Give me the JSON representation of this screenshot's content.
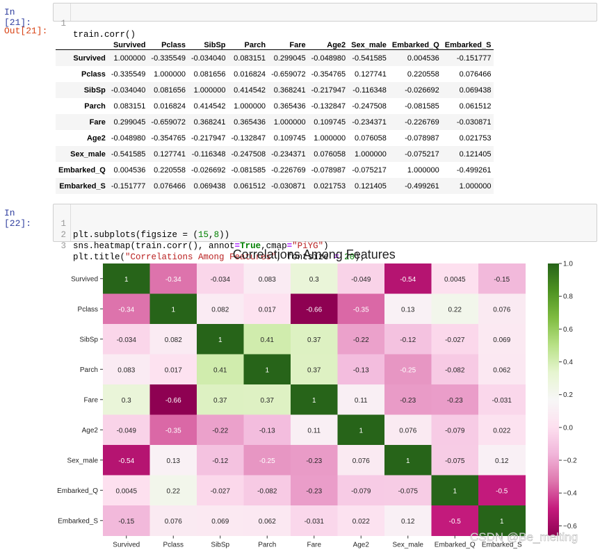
{
  "cell21": {
    "in_prompt": "In  [21]:",
    "out_prompt": "Out[21]:",
    "code": "train.corr()"
  },
  "corr_table": {
    "columns": [
      "Survived",
      "Pclass",
      "SibSp",
      "Parch",
      "Fare",
      "Age2",
      "Sex_male",
      "Embarked_Q",
      "Embarked_S"
    ],
    "rows": [
      {
        "label": "Survived",
        "values": [
          "1.000000",
          "-0.335549",
          "-0.034040",
          "0.083151",
          "0.299045",
          "-0.048980",
          "-0.541585",
          "0.004536",
          "-0.151777"
        ]
      },
      {
        "label": "Pclass",
        "values": [
          "-0.335549",
          "1.000000",
          "0.081656",
          "0.016824",
          "-0.659072",
          "-0.354765",
          "0.127741",
          "0.220558",
          "0.076466"
        ]
      },
      {
        "label": "SibSp",
        "values": [
          "-0.034040",
          "0.081656",
          "1.000000",
          "0.414542",
          "0.368241",
          "-0.217947",
          "-0.116348",
          "-0.026692",
          "0.069438"
        ]
      },
      {
        "label": "Parch",
        "values": [
          "0.083151",
          "0.016824",
          "0.414542",
          "1.000000",
          "0.365436",
          "-0.132847",
          "-0.247508",
          "-0.081585",
          "0.061512"
        ]
      },
      {
        "label": "Fare",
        "values": [
          "0.299045",
          "-0.659072",
          "0.368241",
          "0.365436",
          "1.000000",
          "0.109745",
          "-0.234371",
          "-0.226769",
          "-0.030871"
        ]
      },
      {
        "label": "Age2",
        "values": [
          "-0.048980",
          "-0.354765",
          "-0.217947",
          "-0.132847",
          "0.109745",
          "1.000000",
          "0.076058",
          "-0.078987",
          "0.021753"
        ]
      },
      {
        "label": "Sex_male",
        "values": [
          "-0.541585",
          "0.127741",
          "-0.116348",
          "-0.247508",
          "-0.234371",
          "0.076058",
          "1.000000",
          "-0.075217",
          "0.121405"
        ]
      },
      {
        "label": "Embarked_Q",
        "values": [
          "0.004536",
          "0.220558",
          "-0.026692",
          "-0.081585",
          "-0.226769",
          "-0.078987",
          "-0.075217",
          "1.000000",
          "-0.499261"
        ]
      },
      {
        "label": "Embarked_S",
        "values": [
          "-0.151777",
          "0.076466",
          "0.069438",
          "0.061512",
          "-0.030871",
          "0.021753",
          "0.121405",
          "-0.499261",
          "1.000000"
        ]
      }
    ]
  },
  "cell22": {
    "in_prompt": "In  [22]:",
    "line_numbers": [
      "1",
      "2",
      "3"
    ],
    "line1": {
      "a": "plt.subplots(figsize = (",
      "n1": "15",
      "b": ",",
      "n2": "8",
      "c": "))"
    },
    "line2": {
      "a": "sns.heatmap(train.corr(), annot",
      "op": "=",
      "kw": "True",
      "b": ",cmap",
      "op2": "=",
      "str": "\"PiYG\"",
      "c": ")"
    },
    "line3": {
      "a": "plt.title(",
      "str": "\"Correlations Among Features\"",
      "b": ", fontsize ",
      "op": "=",
      "n": " 20",
      "c": ");"
    }
  },
  "watermark": "CSDN @Be_melting",
  "chart_data": {
    "type": "heatmap",
    "title": "Correlations Among Features",
    "cmap": "PiYG",
    "x_categories": [
      "Survived",
      "Pclass",
      "SibSp",
      "Parch",
      "Fare",
      "Age2",
      "Sex_male",
      "Embarked_Q",
      "Embarked_S"
    ],
    "y_categories": [
      "Survived",
      "Pclass",
      "SibSp",
      "Parch",
      "Fare",
      "Age2",
      "Sex_male",
      "Embarked_Q",
      "Embarked_S"
    ],
    "values": [
      [
        1.0,
        -0.335549,
        -0.03404,
        0.083151,
        0.299045,
        -0.04898,
        -0.541585,
        0.004536,
        -0.151777
      ],
      [
        -0.335549,
        1.0,
        0.081656,
        0.016824,
        -0.659072,
        -0.354765,
        0.127741,
        0.220558,
        0.076466
      ],
      [
        -0.03404,
        0.081656,
        1.0,
        0.414542,
        0.368241,
        -0.217947,
        -0.116348,
        -0.026692,
        0.069438
      ],
      [
        0.083151,
        0.016824,
        0.414542,
        1.0,
        0.365436,
        -0.132847,
        -0.247508,
        -0.081585,
        0.061512
      ],
      [
        0.299045,
        -0.659072,
        0.368241,
        0.365436,
        1.0,
        0.109745,
        -0.234371,
        -0.226769,
        -0.030871
      ],
      [
        -0.04898,
        -0.354765,
        -0.217947,
        -0.132847,
        0.109745,
        1.0,
        0.076058,
        -0.078987,
        0.021753
      ],
      [
        -0.541585,
        0.127741,
        -0.116348,
        -0.247508,
        -0.234371,
        0.076058,
        1.0,
        -0.075217,
        0.121405
      ],
      [
        0.004536,
        0.220558,
        -0.026692,
        -0.081585,
        -0.226769,
        -0.078987,
        -0.075217,
        1.0,
        -0.499261
      ],
      [
        -0.151777,
        0.076466,
        0.069438,
        0.061512,
        -0.030871,
        0.021753,
        0.121405,
        -0.499261,
        1.0
      ]
    ],
    "annotations": [
      [
        "1",
        "-0.34",
        "-0.034",
        "0.083",
        "0.3",
        "-0.049",
        "-0.54",
        "0.0045",
        "-0.15"
      ],
      [
        "-0.34",
        "1",
        "0.082",
        "0.017",
        "-0.66",
        "-0.35",
        "0.13",
        "0.22",
        "0.076"
      ],
      [
        "-0.034",
        "0.082",
        "1",
        "0.41",
        "0.37",
        "-0.22",
        "-0.12",
        "-0.027",
        "0.069"
      ],
      [
        "0.083",
        "0.017",
        "0.41",
        "1",
        "0.37",
        "-0.13",
        "-0.25",
        "-0.082",
        "0.062"
      ],
      [
        "0.3",
        "-0.66",
        "0.37",
        "0.37",
        "1",
        "0.11",
        "-0.23",
        "-0.23",
        "-0.031"
      ],
      [
        "-0.049",
        "-0.35",
        "-0.22",
        "-0.13",
        "0.11",
        "1",
        "0.076",
        "-0.079",
        "0.022"
      ],
      [
        "-0.54",
        "0.13",
        "-0.12",
        "-0.25",
        "-0.23",
        "0.076",
        "1",
        "-0.075",
        "0.12"
      ],
      [
        "0.0045",
        "0.22",
        "-0.027",
        "-0.082",
        "-0.23",
        "-0.079",
        "-0.075",
        "1",
        "-0.5"
      ],
      [
        "-0.15",
        "0.076",
        "0.069",
        "0.062",
        "-0.031",
        "0.022",
        "0.12",
        "-0.5",
        "1"
      ]
    ],
    "colorbar": {
      "range": [
        -0.66,
        1.0
      ],
      "ticks": [
        1.0,
        0.8,
        0.6,
        0.4,
        0.2,
        0.0,
        -0.2,
        -0.4,
        -0.6
      ],
      "tick_labels": [
        "1.0",
        "0.8",
        "0.6",
        "0.4",
        "0.2",
        "0.0",
        "−0.2",
        "−0.4",
        "−0.6"
      ]
    }
  }
}
